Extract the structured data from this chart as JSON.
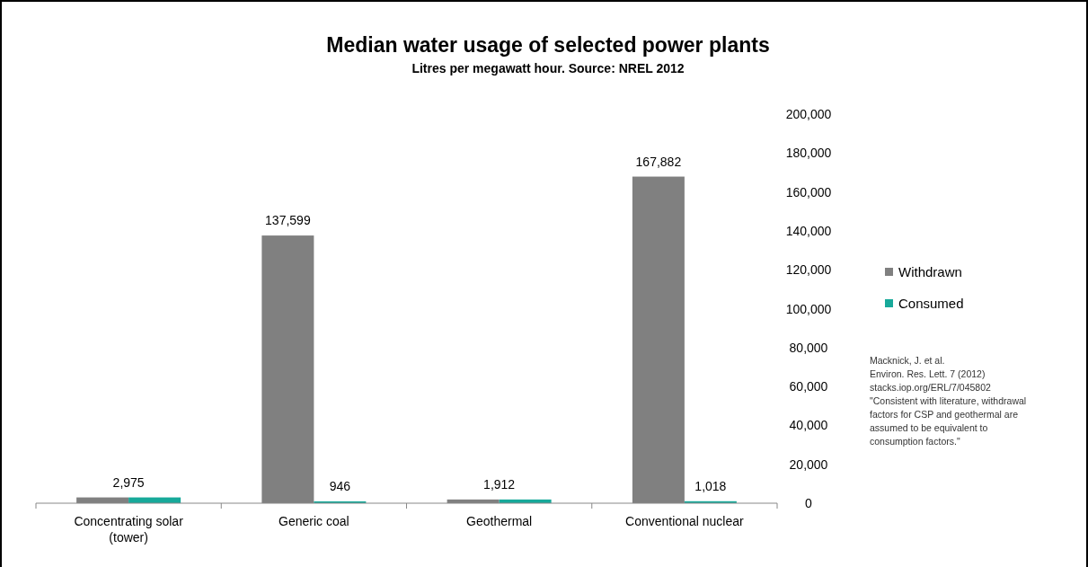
{
  "chart_data": {
    "type": "bar",
    "title": "Median water usage of selected power plants",
    "subtitle": "Litres per megawatt hour. Source: NREL 2012",
    "categories": [
      "Concentrating solar\n(tower)",
      "Generic coal",
      "Geothermal",
      "Conventional nuclear"
    ],
    "series": [
      {
        "name": "Withdrawn",
        "color": "#808080",
        "values": [
          2975,
          137599,
          1912,
          167882
        ],
        "value_labels": [
          "2,975",
          "137,599",
          "1,912",
          "167,882"
        ]
      },
      {
        "name": "Consumed",
        "color": "#17a99a",
        "values": [
          2975,
          946,
          1912,
          1018
        ],
        "value_labels": [
          null,
          "946",
          null,
          "1,018"
        ]
      }
    ],
    "ylim": [
      0,
      200000
    ],
    "yticks": [
      {
        "value": 0,
        "label": "0"
      },
      {
        "value": 20000,
        "label": "20,000"
      },
      {
        "value": 40000,
        "label": "40,000"
      },
      {
        "value": 60000,
        "label": "60,000"
      },
      {
        "value": 80000,
        "label": "80,000"
      },
      {
        "value": 100000,
        "label": "100,000"
      },
      {
        "value": 120000,
        "label": "120,000"
      },
      {
        "value": 140000,
        "label": "140,000"
      },
      {
        "value": 160000,
        "label": "160,000"
      },
      {
        "value": 180000,
        "label": "180,000"
      },
      {
        "value": 200000,
        "label": "200,000"
      }
    ],
    "legend": "right",
    "annotations": [
      "Macknick, J. et al.\nEnviron. Res. Lett. 7 (2012)\nstacks.iop.org/ERL/7/045802\n\"Consistent with literature, withdrawal\nfactors for CSP and geothermal are\nassumed to be equivalent to\nconsumption factors.\""
    ]
  }
}
